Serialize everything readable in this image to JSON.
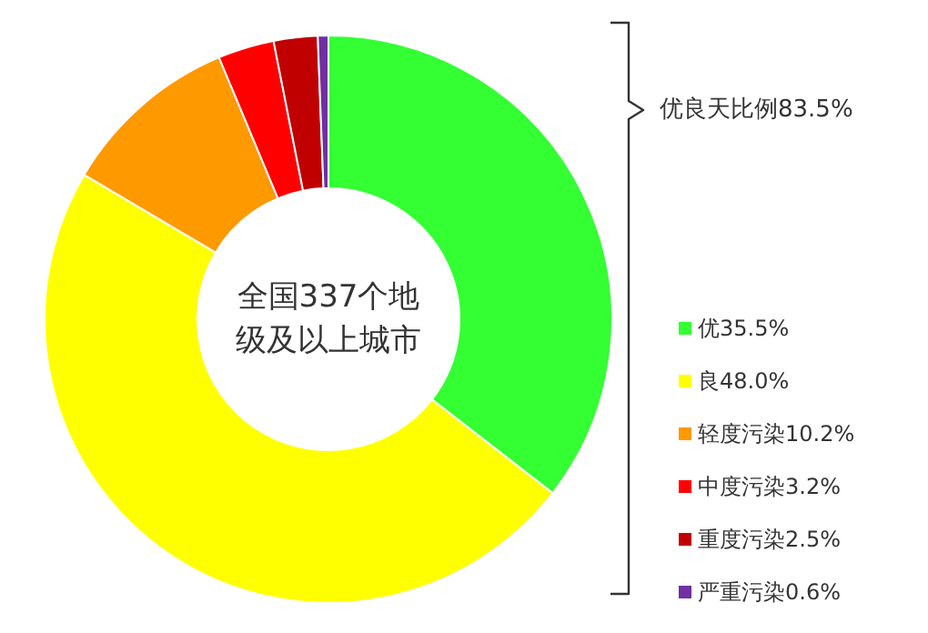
{
  "chart_data": {
    "type": "donut",
    "title": "全国337个地级及以上城市",
    "categories": [
      "优",
      "良",
      "轻度污染",
      "中度污染",
      "重度污染",
      "严重污染"
    ],
    "values": [
      35.5,
      48.0,
      10.2,
      3.2,
      2.5,
      0.6
    ],
    "value_labels": [
      "35.5%",
      "48.0%",
      "10.2%",
      "3.2%",
      "2.5%",
      "0.6%"
    ],
    "colors": [
      "#33ff33",
      "#ffff00",
      "#ff9900",
      "#ff0000",
      "#c00000",
      "#7030a0"
    ],
    "annotations": [
      "优良天比例83.5%"
    ],
    "legend": "right"
  }
}
